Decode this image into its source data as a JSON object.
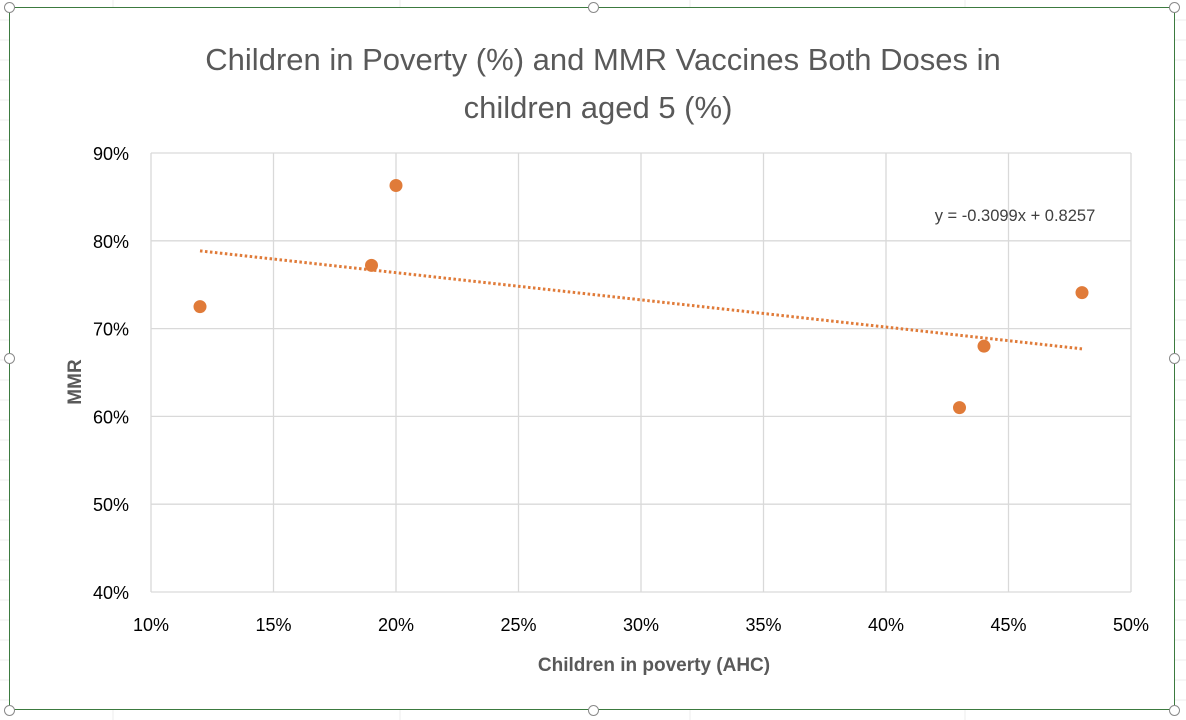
{
  "chart_data": {
    "type": "scatter",
    "title_lines": [
      "Children in Poverty (%) and MMR Vaccines Both Doses in",
      "children aged 5 (%)"
    ],
    "xlabel": "Children in poverty (AHC)",
    "ylabel": "MMR",
    "xlim": [
      0.1,
      0.5
    ],
    "ylim": [
      0.4,
      0.9
    ],
    "x_ticks": [
      0.1,
      0.15,
      0.2,
      0.25,
      0.3,
      0.35,
      0.4,
      0.45,
      0.5
    ],
    "y_ticks": [
      0.4,
      0.5,
      0.6,
      0.7,
      0.8,
      0.9
    ],
    "x_tick_labels": [
      "10%",
      "15%",
      "20%",
      "25%",
      "30%",
      "35%",
      "40%",
      "45%",
      "50%"
    ],
    "y_tick_labels": [
      "40%",
      "50%",
      "60%",
      "70%",
      "80%",
      "90%"
    ],
    "grid": true,
    "series": [
      {
        "points": [
          {
            "x": 0.12,
            "y": 0.725
          },
          {
            "x": 0.19,
            "y": 0.772
          },
          {
            "x": 0.2,
            "y": 0.863
          },
          {
            "x": 0.43,
            "y": 0.61
          },
          {
            "x": 0.44,
            "y": 0.68
          },
          {
            "x": 0.48,
            "y": 0.741
          }
        ]
      }
    ],
    "trendline": {
      "type": "linear",
      "slope": -0.3099,
      "intercept": 0.8257,
      "x_range": [
        0.12,
        0.48
      ],
      "equation_label": "y = -0.3099x + 0.8257"
    },
    "colors": {
      "marker": "#e07b39",
      "trendline": "#e07b39",
      "gridline": "#d9d9d9",
      "frame": "#3c7a3f"
    }
  }
}
